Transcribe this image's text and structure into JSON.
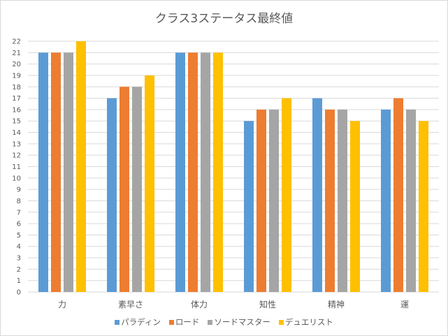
{
  "chart_data": {
    "type": "bar",
    "title": "クラス3ステータス最終値",
    "xlabel": "",
    "ylabel": "",
    "categories": [
      "力",
      "素早さ",
      "体力",
      "知性",
      "精神",
      "運"
    ],
    "series": [
      {
        "name": "パラディン",
        "color": "#5b9bd5",
        "values": [
          21,
          17,
          21,
          15,
          17,
          16
        ]
      },
      {
        "name": "ロード",
        "color": "#ed7d31",
        "values": [
          21,
          18,
          21,
          16,
          16,
          17
        ]
      },
      {
        "name": "ソードマスター",
        "color": "#a5a5a5",
        "values": [
          21,
          18,
          21,
          16,
          16,
          16
        ]
      },
      {
        "name": "デュエリスト",
        "color": "#ffc000",
        "values": [
          22,
          19,
          21,
          17,
          15,
          15
        ]
      }
    ],
    "ylim": [
      0,
      22
    ],
    "yticks": [
      0,
      1,
      2,
      3,
      4,
      5,
      6,
      7,
      8,
      9,
      10,
      11,
      12,
      13,
      14,
      15,
      16,
      17,
      18,
      19,
      20,
      21,
      22
    ],
    "grid": true,
    "legend": "bottom"
  }
}
